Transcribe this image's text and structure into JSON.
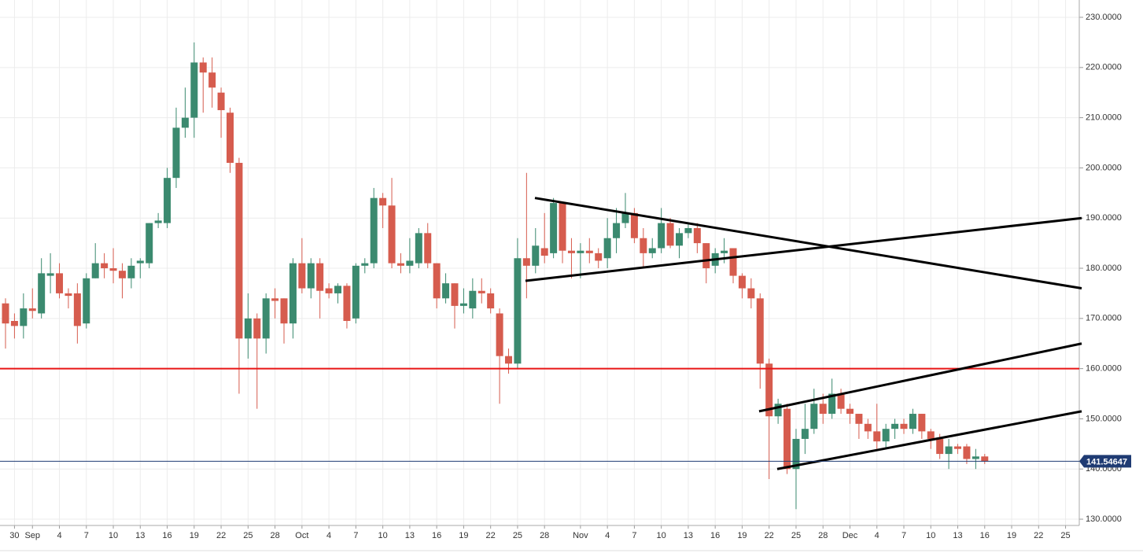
{
  "chart_data": {
    "type": "candlestick",
    "categories": [
      null,
      "30",
      null,
      "Sep",
      null,
      null,
      "4",
      null,
      null,
      "7",
      null,
      null,
      "10",
      null,
      null,
      "13",
      null,
      null,
      "16",
      null,
      null,
      "19",
      null,
      null,
      "22",
      null,
      null,
      "25",
      null,
      null,
      "28",
      null,
      null,
      "Oct",
      null,
      null,
      "4",
      null,
      null,
      "7",
      null,
      null,
      "10",
      null,
      null,
      "13",
      null,
      null,
      "16",
      null,
      null,
      "19",
      null,
      null,
      "22",
      null,
      null,
      "25",
      null,
      null,
      "28",
      null,
      null,
      null,
      "Nov",
      null,
      null,
      "4",
      null,
      null,
      "7",
      null,
      null,
      "10",
      null,
      null,
      "13",
      null,
      null,
      "16",
      null,
      null,
      "19",
      null,
      null,
      "22",
      null,
      null,
      "25",
      null,
      null,
      "28",
      null,
      null,
      "Dec",
      null,
      null,
      "4",
      null,
      null,
      "7",
      null,
      null,
      "10",
      null,
      null,
      "13",
      null,
      null,
      "16",
      null,
      null,
      "19",
      null,
      null,
      "22",
      null,
      null,
      "25",
      null
    ],
    "open": [
      173,
      169.5,
      168.5,
      172,
      171,
      178.5,
      179,
      175,
      175,
      169,
      178,
      181,
      180,
      179.5,
      178,
      181,
      181,
      189,
      189,
      198,
      208,
      210,
      221,
      219,
      215,
      211,
      201,
      166,
      170,
      166,
      174,
      174,
      169,
      181,
      176,
      181,
      176,
      175,
      176.5,
      170,
      180.5,
      181,
      194,
      192.5,
      181,
      180.5,
      181,
      187,
      181,
      174,
      177,
      172.5,
      172,
      175.5,
      175,
      171,
      162.5,
      161,
      182,
      180.5,
      184,
      183,
      193,
      183.5,
      183,
      183.5,
      183,
      182,
      186,
      189,
      191,
      186,
      183,
      184,
      189,
      184.5,
      187,
      188,
      185,
      180.5,
      183,
      184,
      178.5,
      176,
      174,
      161,
      150.5,
      152,
      140,
      146,
      148,
      153,
      151,
      155,
      152,
      151,
      149,
      147.5,
      145.5,
      148,
      149,
      148,
      151,
      147.5,
      146,
      143,
      144.5,
      144.5,
      142,
      142.5,
      null,
      null,
      null,
      null,
      null,
      null,
      null,
      null,
      null,
      null
    ],
    "high": [
      174,
      171,
      175,
      176,
      182,
      183,
      181,
      176,
      177,
      179,
      185,
      183,
      184,
      181,
      182,
      182,
      189,
      191,
      200,
      212,
      216,
      225,
      222,
      222,
      216,
      212,
      202,
      175,
      171,
      175,
      176,
      174,
      182,
      186,
      182,
      182,
      177,
      177,
      177,
      181,
      182,
      196,
      195,
      198,
      183,
      186,
      188,
      189,
      181,
      179,
      177,
      176,
      178,
      178,
      176,
      172,
      164,
      186,
      199,
      188,
      191,
      194,
      193,
      186,
      185,
      186,
      184,
      190,
      192,
      195,
      192,
      188,
      186,
      192,
      190,
      188,
      189,
      189,
      185,
      184,
      186,
      184,
      179,
      178,
      175,
      162,
      154,
      153,
      148,
      153,
      156,
      155,
      158,
      156,
      153,
      151,
      150,
      153,
      149,
      150,
      150,
      152,
      151,
      148,
      147,
      146,
      145,
      145,
      144,
      143,
      null,
      null,
      null,
      null,
      null,
      null,
      null,
      null,
      null,
      null
    ],
    "low": [
      164,
      166,
      166,
      170,
      170,
      175,
      174,
      172,
      165,
      168,
      178,
      178,
      177,
      174,
      176,
      178,
      180,
      188,
      188,
      196,
      206,
      206,
      211,
      212,
      206,
      199,
      155,
      162,
      152,
      163,
      170,
      165,
      166,
      175,
      174,
      170,
      174,
      173,
      168,
      169,
      179,
      180,
      188,
      180,
      179,
      179,
      180,
      180,
      172,
      173,
      168,
      171,
      170,
      173,
      171,
      153,
      159,
      160,
      174,
      179,
      181,
      182,
      181,
      178,
      178,
      181,
      180,
      180,
      183,
      188,
      185,
      180,
      182,
      183,
      184,
      182,
      186,
      183,
      177,
      179,
      181,
      177,
      174,
      172,
      156,
      138,
      149,
      139,
      132,
      143,
      147,
      149,
      150,
      151,
      149,
      146,
      146,
      144,
      144,
      146,
      147,
      147,
      146,
      144,
      142,
      140,
      143,
      141,
      140,
      141,
      null,
      null,
      null,
      null,
      null,
      null,
      null,
      null,
      null,
      null
    ],
    "close": [
      169,
      168.5,
      172,
      171.5,
      179,
      179,
      175,
      174.5,
      168.5,
      178,
      181,
      180,
      179.5,
      178,
      180.5,
      181.5,
      189,
      189.5,
      198,
      208,
      210,
      221,
      219,
      216,
      211.5,
      201,
      166,
      170,
      166,
      174,
      173.5,
      169,
      181,
      176,
      181,
      175.5,
      175,
      176.5,
      169.5,
      180.5,
      181,
      194,
      192.5,
      181,
      180.5,
      181.5,
      187,
      181,
      174,
      177,
      172.5,
      173,
      175.5,
      175,
      172,
      162.5,
      161,
      182,
      180.5,
      184.5,
      182.5,
      193,
      183.5,
      183,
      183.5,
      183,
      181.5,
      186,
      189,
      191,
      186,
      183,
      184,
      189,
      184.5,
      187,
      188,
      185,
      180,
      183,
      183.5,
      178.5,
      176,
      174,
      161,
      150.5,
      153,
      140,
      146,
      148,
      153,
      151,
      155,
      152,
      151,
      149,
      147.5,
      145.5,
      148,
      149,
      148,
      151,
      147.5,
      146,
      143,
      144.5,
      144,
      142,
      142.5,
      141.5,
      null,
      null,
      null,
      null,
      null,
      null,
      null,
      null,
      null,
      null
    ],
    "up_color": "#3b8a6f",
    "down_color": "#d65c4e",
    "ylim": [
      128.75,
      233.45
    ],
    "yticks": [
      {
        "value": 130,
        "label": "130.0000"
      },
      {
        "value": 140,
        "label": "140.0000"
      },
      {
        "value": 150,
        "label": "150.0000"
      },
      {
        "value": 160,
        "label": "160.0000"
      },
      {
        "value": 170,
        "label": "170.0000"
      },
      {
        "value": 180,
        "label": "180.0000"
      },
      {
        "value": 190,
        "label": "190.0000"
      },
      {
        "value": 200,
        "label": "200.0000"
      },
      {
        "value": 210,
        "label": "210.0000"
      },
      {
        "value": 220,
        "label": "220.0000"
      },
      {
        "value": 230,
        "label": "230.0000"
      }
    ],
    "grid": true,
    "trendlines": [
      {
        "values": [
          194,
          176
        ]
      },
      {
        "values": [
          177.5,
          190
        ]
      },
      {
        "values": [
          151.5,
          165
        ]
      },
      {
        "values": [
          140,
          151.5
        ]
      }
    ],
    "trendline_color": "#000000",
    "hline": {
      "value": 160,
      "color": "#e81515"
    },
    "last_price": {
      "value": 141.54647,
      "color": "#1f3b73"
    }
  }
}
